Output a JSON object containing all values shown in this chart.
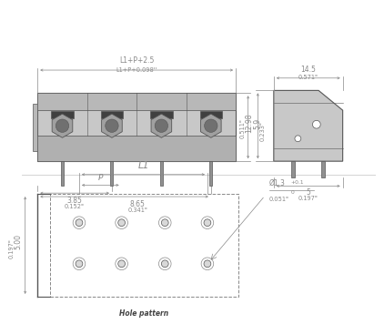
{
  "bg_color": "#ffffff",
  "line_color": "#888888",
  "dark_line": "#555555",
  "body_color": "#d0d0d0",
  "front_view": {
    "dim_top1": "L1+P+2.5",
    "dim_top2": "L1+P+0.098''",
    "dim_right_top": "5.9",
    "dim_right_top_in": "0.233\"",
    "dim_bot_left": "3.85",
    "dim_bot_left_in": "0.152\"",
    "dim_bot_right": "8.65",
    "dim_bot_right_in": "0.341\""
  },
  "side_view": {
    "dim_top": "14.5",
    "dim_top_in": "0.571\"",
    "dim_right": "12.98",
    "dim_right_in": "0.511\"",
    "dim_bot": "5",
    "dim_bot_in": "0.197\""
  },
  "hole_pattern": {
    "dim_left": "5.00",
    "dim_left_in": "0.197\"",
    "dim_top": "L1",
    "dim_p": "P",
    "dim_hole": "Ø1.3",
    "dim_hole_sup": "+0.1",
    "dim_hole_sub": "0",
    "dim_hole_in": "0.051\"",
    "label": "Hole pattern"
  }
}
